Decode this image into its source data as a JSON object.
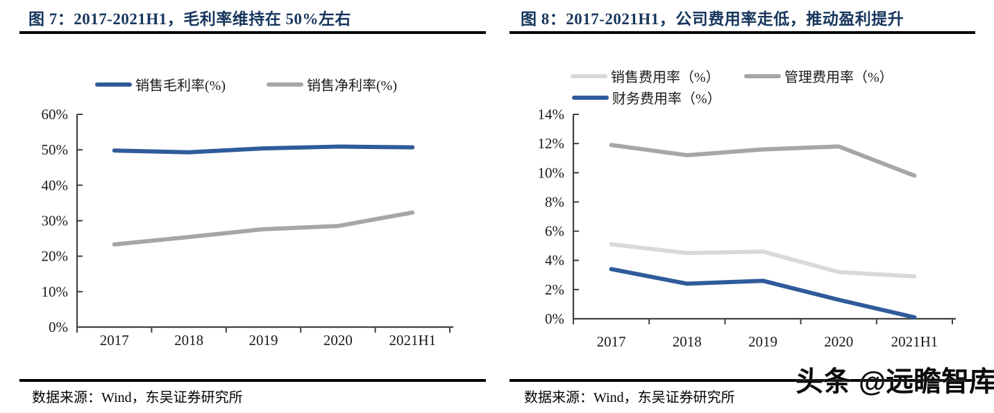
{
  "panels": [
    {
      "title": "图 7：2017-2021H1，毛利率维持在 50%左右",
      "source": "数据来源：Wind，东吴证券研究所"
    },
    {
      "title": "图 8：2017-2021H1，公司费用率走低，推动盈利提升",
      "source": "数据来源：Wind，东吴证券研究所"
    }
  ],
  "watermark": "头条 @远瞻智库",
  "colors": {
    "title_navy": "#17365D",
    "line_blue": "#2F5B9B",
    "line_gray": "#A6A6A6",
    "line_light_gray": "#D9D9D9",
    "axis": "#404040",
    "rule_black": "#000000"
  },
  "chart_data": [
    {
      "type": "line",
      "title": "图 7：2017-2021H1，毛利率维持在 50%左右",
      "categories": [
        "2017",
        "2018",
        "2019",
        "2020",
        "2021H1"
      ],
      "series": [
        {
          "name": "销售毛利率(%)",
          "color": "#2F5B9B",
          "values": [
            49.8,
            49.3,
            50.4,
            50.9,
            50.7
          ]
        },
        {
          "name": "销售净利率(%)",
          "color": "#A6A6A6",
          "values": [
            23.3,
            25.4,
            27.6,
            28.5,
            32.3
          ]
        }
      ],
      "xlabel": "",
      "ylabel": "",
      "ylim": [
        0,
        60
      ],
      "ytick_step": 10,
      "ytick_suffix": "%",
      "grid": false,
      "legend_position": "top"
    },
    {
      "type": "line",
      "title": "图 8：2017-2021H1，公司费用率走低，推动盈利提升",
      "categories": [
        "2017",
        "2018",
        "2019",
        "2020",
        "2021H1"
      ],
      "series": [
        {
          "name": "销售费用率（%）",
          "color": "#D9D9D9",
          "values": [
            5.1,
            4.5,
            4.6,
            3.2,
            2.9
          ]
        },
        {
          "name": "管理费用率（%）",
          "color": "#A6A6A6",
          "values": [
            11.9,
            11.2,
            11.6,
            11.8,
            9.8
          ]
        },
        {
          "name": "财务费用率（%）",
          "color": "#2F5B9B",
          "values": [
            3.4,
            2.4,
            2.6,
            1.3,
            0.1
          ]
        }
      ],
      "xlabel": "",
      "ylabel": "",
      "ylim": [
        0,
        14
      ],
      "ytick_step": 2,
      "ytick_suffix": "%",
      "grid": false,
      "legend_position": "top"
    }
  ]
}
